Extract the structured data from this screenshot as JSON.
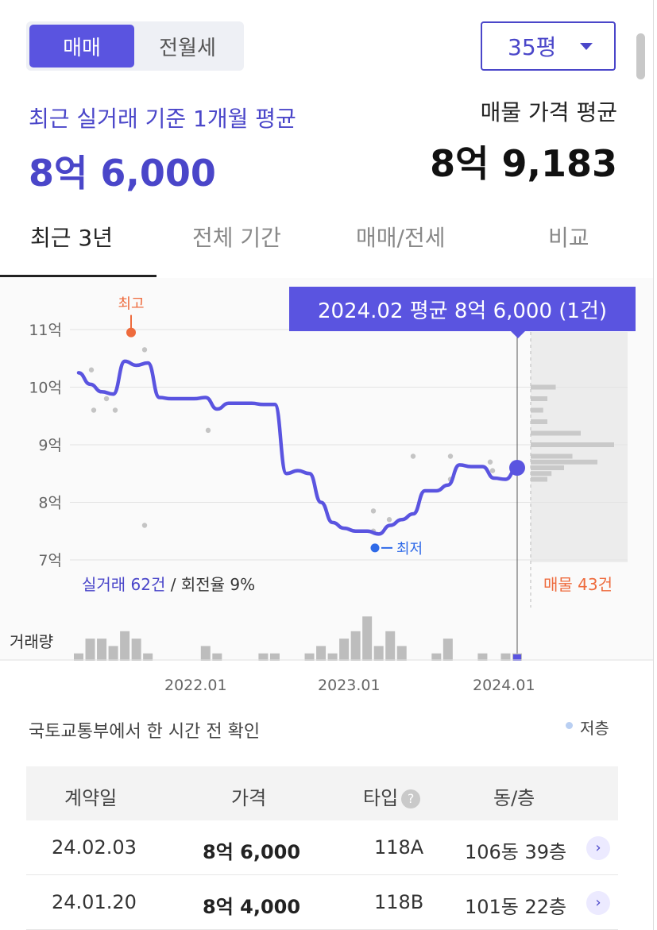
{
  "trade_toggle": {
    "active": "매매",
    "inactive": "전월세"
  },
  "size_dropdown": {
    "value": "35평"
  },
  "summary": {
    "recent_avg_label": "최근 실거래 기준 1개월 평균",
    "recent_avg_value": "8억 6,000",
    "ask_avg_label": "매물 가격 평균",
    "ask_avg_value": "8억 9,183"
  },
  "tabs": [
    "최근 3년",
    "전체 기간",
    "매매/전세",
    "비교"
  ],
  "colors": {
    "accent": "#5a54e0",
    "high": "#ee6b3d",
    "low": "#2f6ae8"
  },
  "chart": {
    "tooltip": "2024.02 평균 8억 6,000 (1건)",
    "high_label": "최고",
    "low_label": "최저",
    "y_ticks": [
      "11억",
      "10억",
      "9억",
      "8억",
      "7억"
    ],
    "deal_count_main": "실거래 62건",
    "deal_count_rest": " / 회전율 9%",
    "ask_count": "매물 43건",
    "volume_label": "거래량",
    "x_ticks": [
      "2022.01",
      "2023.01",
      "2024.01"
    ]
  },
  "chart_data": {
    "type": "line",
    "ylabel": "",
    "ylim": [
      7,
      11.5
    ],
    "y_unit": "억",
    "series": [
      {
        "values_by_month": [
          10.25,
          10.05,
          9.92,
          9.88,
          10.45,
          10.38,
          10.42,
          9.82,
          9.8,
          9.8,
          9.8,
          9.82,
          9.62,
          9.72,
          9.72,
          9.72,
          9.7,
          9.7,
          8.5,
          8.55,
          8.5,
          8.0,
          7.65,
          7.55,
          7.5,
          7.5,
          7.45,
          7.6,
          7.7,
          7.8,
          8.2,
          8.2,
          8.3,
          8.65,
          8.62,
          8.62,
          8.42,
          8.4,
          8.6
        ]
      }
    ],
    "x_start": "2021.04",
    "x_end": "2024.02",
    "scatter_points": [
      [
        10.2,
        10.3
      ],
      [
        10.0,
        9.6
      ],
      [
        10.45,
        9.8
      ],
      [
        10.6,
        9.6
      ],
      [
        10.15,
        10.65
      ],
      [
        9.95,
        9.25
      ],
      [
        7.3,
        7.6
      ],
      [
        7.35,
        7.5
      ],
      [
        7.55,
        7.85
      ],
      [
        8.1,
        7.7
      ],
      [
        8.4,
        8.8
      ],
      [
        8.6,
        8.4
      ],
      [
        8.75,
        8.8
      ],
      [
        8.5,
        8.7
      ],
      [
        8.25,
        8.55
      ]
    ],
    "high_point": 10.95,
    "low_point": 7.25,
    "current_point": 8.6,
    "volume": [
      1,
      3,
      3,
      2,
      4,
      3,
      1,
      0,
      0,
      0,
      0,
      2,
      1,
      0,
      0,
      0,
      1,
      1,
      0,
      0,
      1,
      2,
      1,
      3,
      4,
      6,
      2,
      4,
      2,
      0,
      0,
      1,
      3,
      0,
      0,
      1,
      0,
      1,
      1
    ],
    "ask_distribution": [
      [
        10.0,
        0.3
      ],
      [
        9.8,
        0.2
      ],
      [
        9.6,
        0.15
      ],
      [
        9.4,
        0.2
      ],
      [
        9.2,
        0.6
      ],
      [
        9.0,
        1.0
      ],
      [
        8.8,
        0.5
      ],
      [
        8.7,
        0.8
      ],
      [
        8.6,
        0.4
      ],
      [
        8.5,
        0.25
      ],
      [
        8.4,
        0.2
      ]
    ]
  },
  "source": {
    "text": "국토교통부에서 한 시간 전 확인",
    "legend": "저층"
  },
  "table": {
    "headers": [
      "계약일",
      "가격",
      "타입",
      "동/층"
    ],
    "help_icon": "?",
    "rows": [
      {
        "date": "24.02.03",
        "price": "8억 6,000",
        "type": "118A",
        "unit": "106동 39층"
      },
      {
        "date": "24.01.20",
        "price": "8억 4,000",
        "type": "118B",
        "unit": "101동 22층"
      }
    ]
  }
}
